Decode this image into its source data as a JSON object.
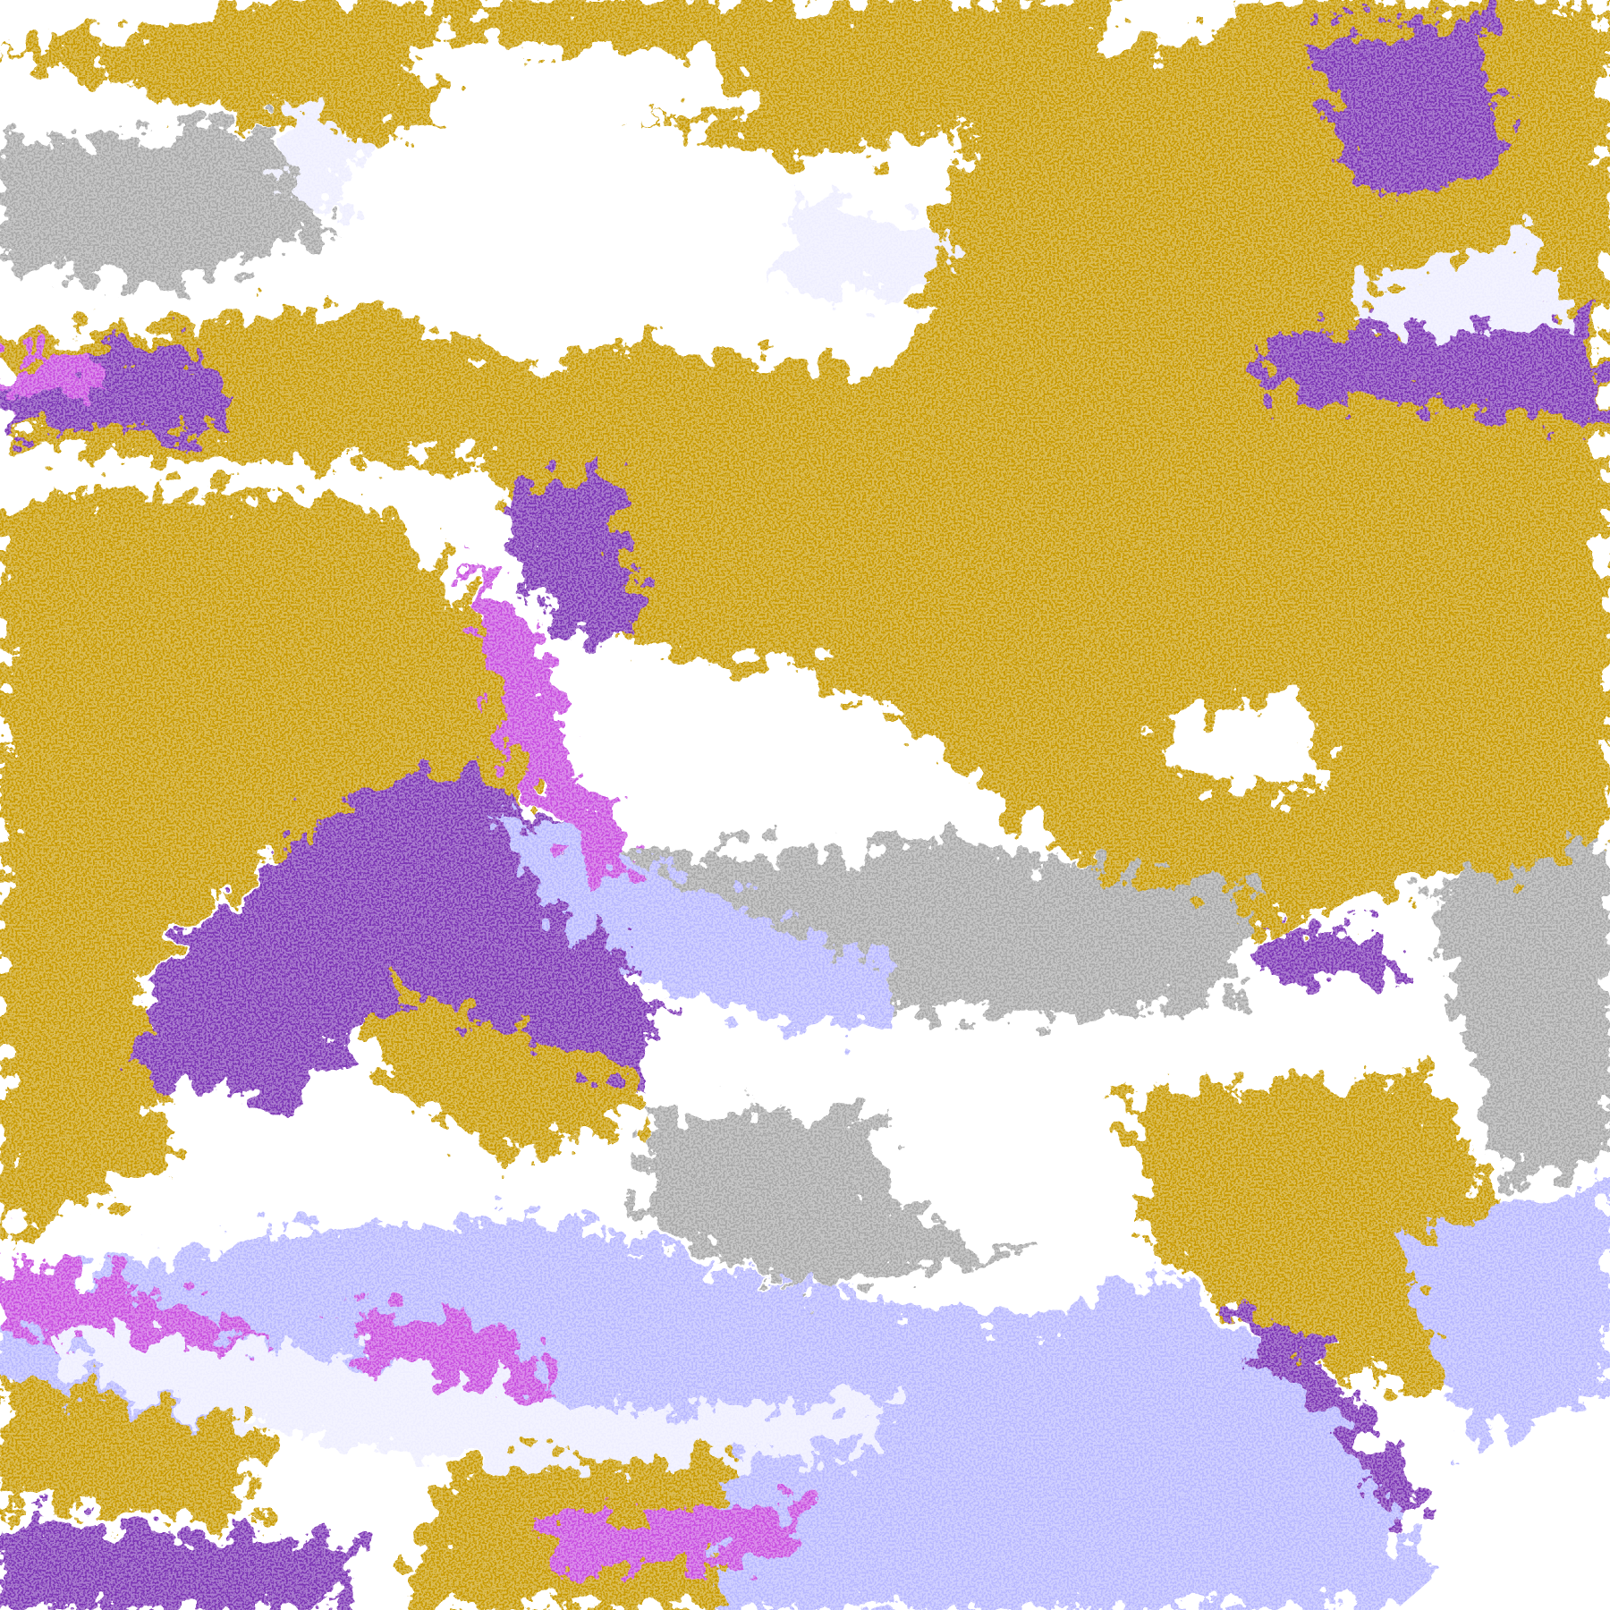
{
  "image": {
    "kind": "false-color satellite cloud classification",
    "colors": {
      "clear": "#ffffff",
      "gold": "#c89a00",
      "purple": "#7b35b5",
      "magenta": "#c850e0",
      "lavender": "#b8b8ff",
      "pale": "#eeeeff",
      "gray": "#a8a8a8",
      "edge_of_disk": "#ffffff"
    }
  }
}
